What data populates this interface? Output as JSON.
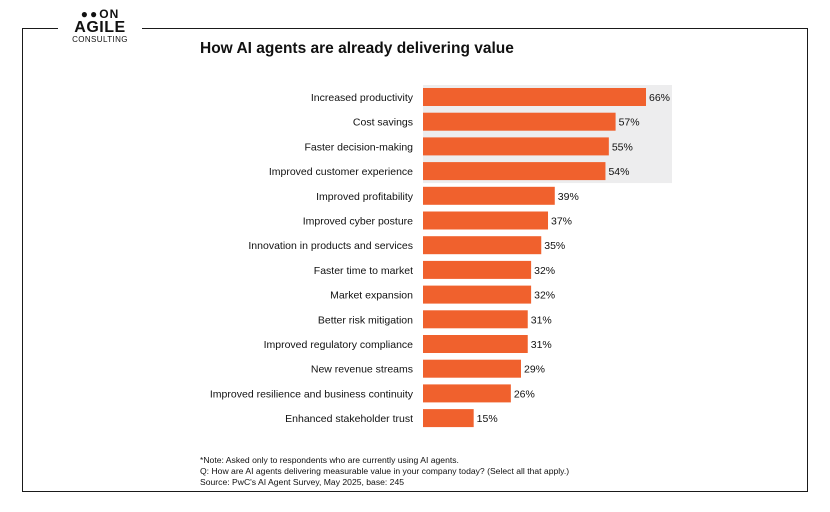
{
  "logo": {
    "top": "ON",
    "main": "AGILE",
    "sub": "CONSULTING"
  },
  "chart_data": {
    "type": "bar",
    "orientation": "horizontal",
    "title": "How AI agents are already delivering value",
    "categories": [
      "Increased productivity",
      "Cost savings",
      "Faster decision-making",
      "Improved customer experience",
      "Improved profitability",
      "Improved cyber posture",
      "Innovation in products and services",
      "Faster time to market",
      "Market expansion",
      "Better risk mitigation",
      "Improved regulatory compliance",
      "New revenue streams",
      "Improved resilience and business continuity",
      "Enhanced stakeholder trust"
    ],
    "values": [
      66,
      57,
      55,
      54,
      39,
      37,
      35,
      32,
      32,
      31,
      31,
      29,
      26,
      15
    ],
    "labels": [
      "66%",
      "57%",
      "55%",
      "54%",
      "39%",
      "37%",
      "35%",
      "32%",
      "32%",
      "31%",
      "31%",
      "29%",
      "26%",
      "15%"
    ],
    "highlighted_top": 4,
    "xlim": [
      0,
      66
    ],
    "xlabel": "",
    "ylabel": "",
    "bar_color": "#f0612d",
    "highlight_color": "#ededee"
  },
  "notes": [
    "*Note: Asked only to respondents who are currently using AI agents.",
    "Q: How are AI agents delivering measurable value in your company today? (Select all that apply.)",
    "Source: PwC's AI Agent Survey, May 2025, base: 245"
  ]
}
